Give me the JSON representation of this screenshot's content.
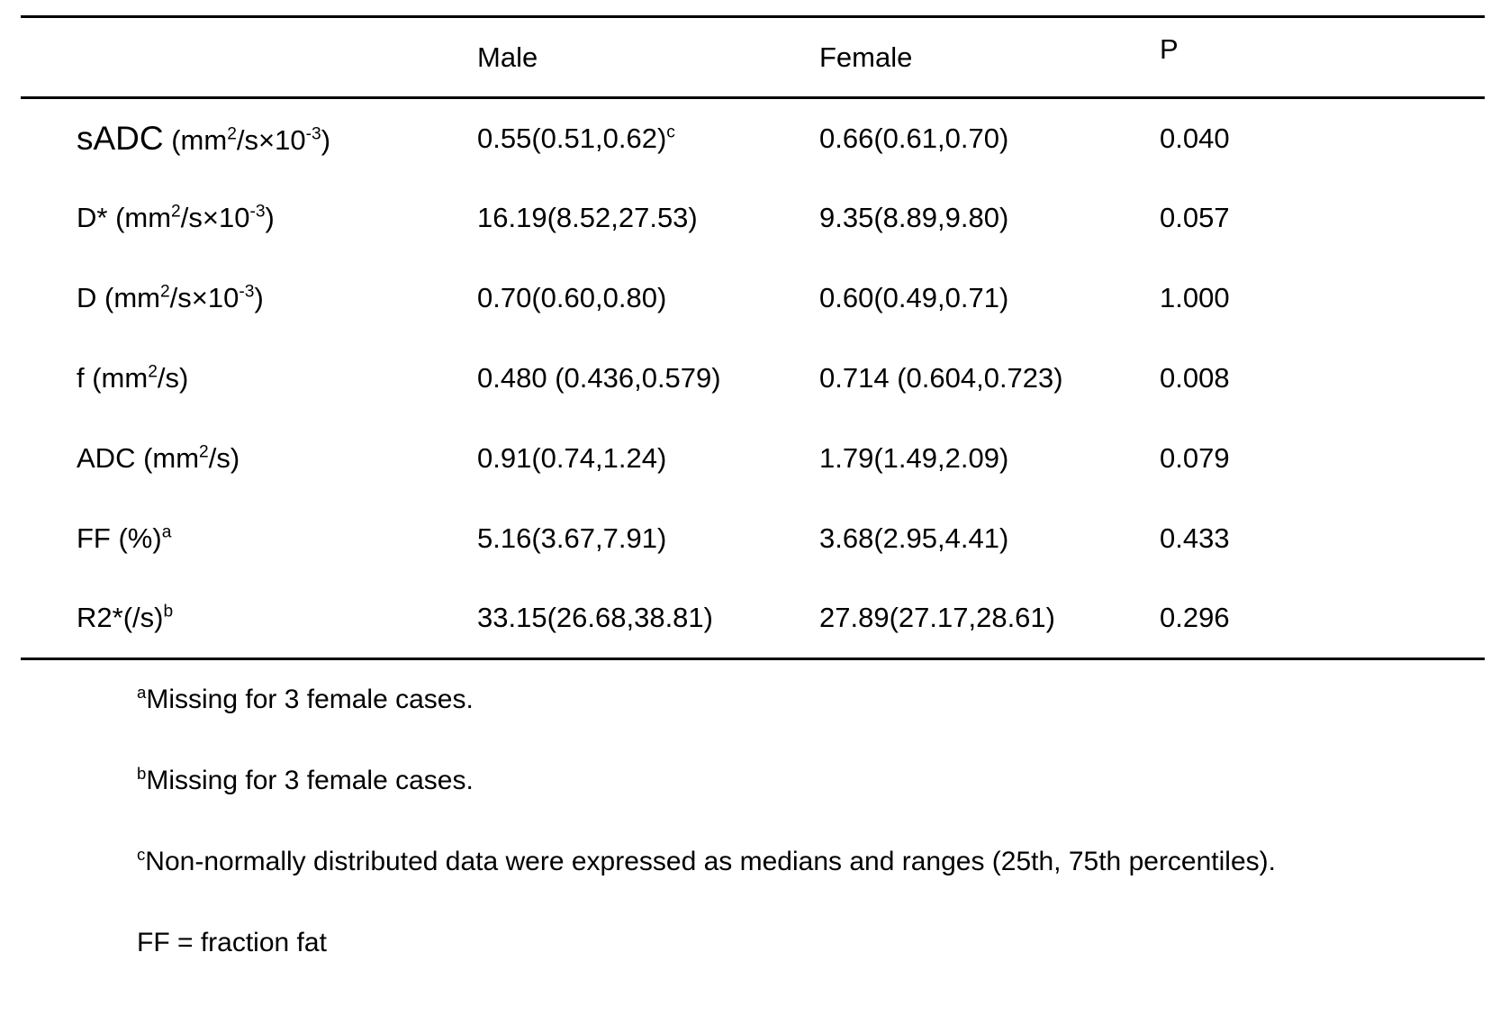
{
  "table": {
    "header": {
      "param": "",
      "male": "Male",
      "female": "Female",
      "p": "P"
    },
    "rows": [
      {
        "param": "sADC",
        "param_large": true,
        "unit": " (mm^{2}/s×10^{-3})",
        "male": "0.55(0.51,0.62)^{c}",
        "female": "0.66(0.61,0.70)",
        "p": "0.040"
      },
      {
        "param": "D*",
        "param_large": false,
        "unit": " (mm^{2}/s×10^{-3})",
        "male": "16.19(8.52,27.53)",
        "female": "9.35(8.89,9.80)",
        "p": "0.057"
      },
      {
        "param": "D",
        "param_large": false,
        "unit": " (mm^{2}/s×10^{-3})",
        "male": "0.70(0.60,0.80)",
        "female": "0.60(0.49,0.71)",
        "p": "1.000"
      },
      {
        "param": "f",
        "param_large": false,
        "unit": " (mm^{2}/s)",
        "male": "0.480 (0.436,0.579)",
        "female": "0.714 (0.604,0.723)",
        "p": "0.008"
      },
      {
        "param": "ADC",
        "param_large": false,
        "unit": " (mm^{2}/s)",
        "male": "0.91(0.74,1.24)",
        "female": "1.79(1.49,2.09)",
        "p": "0.079"
      },
      {
        "param": "FF",
        "param_large": false,
        "unit": " (%)^{a}",
        "male": "5.16(3.67,7.91)",
        "female": "3.68(2.95,4.41)",
        "p": "0.433"
      },
      {
        "param": "R2*",
        "param_large": false,
        "unit": "(/s)^{b}",
        "male": "33.15(26.68,38.81)",
        "female": "27.89(27.17,28.61)",
        "p": "0.296"
      }
    ]
  },
  "footnotes": [
    "^{a}Missing for 3 female cases.",
    "^{b}Missing for 3 female cases.",
    "^{c}Non-normally distributed data were expressed as medians and ranges (25th, 75th percentiles).",
    "FF = fraction fat"
  ],
  "colors": {
    "text": "#000000",
    "background": "#ffffff",
    "rule": "#000000"
  }
}
